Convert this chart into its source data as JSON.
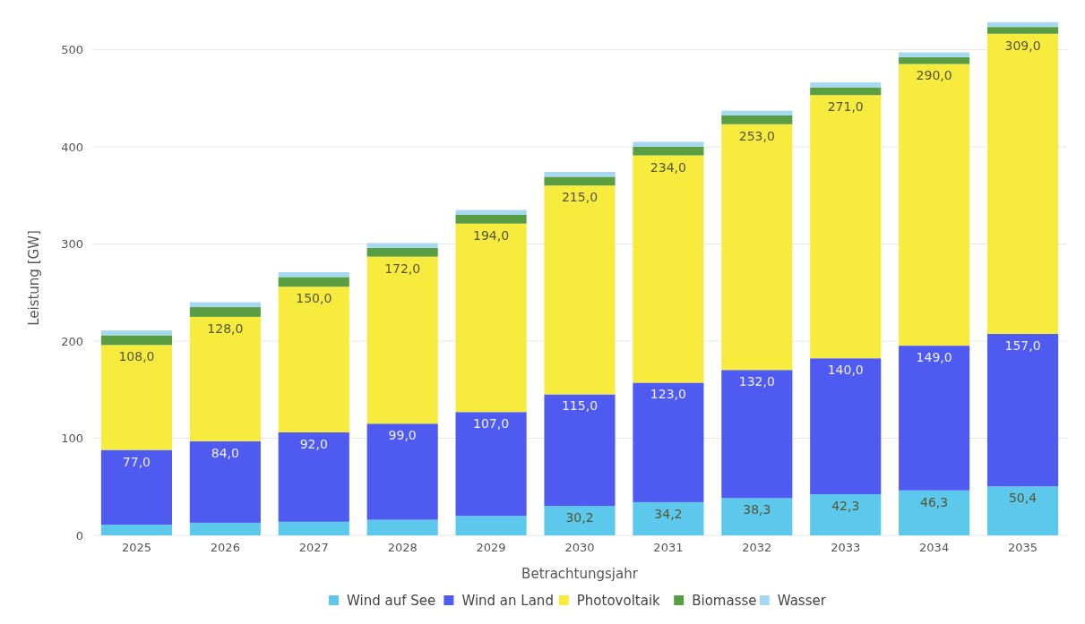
{
  "chart_data": {
    "type": "bar",
    "stacked": true,
    "xlabel": "Betrachtungsjahr",
    "ylabel": "Leistung [GW]",
    "categories": [
      "2025",
      "2026",
      "2027",
      "2028",
      "2029",
      "2030",
      "2031",
      "2032",
      "2033",
      "2034",
      "2035"
    ],
    "ylim": [
      0,
      530
    ],
    "yticks": [
      0,
      100,
      200,
      300,
      400,
      500
    ],
    "grid": "y",
    "legend": "bottom",
    "series": [
      {
        "name": "Wind auf See",
        "color": "#5bc8ec",
        "values": [
          11,
          13,
          14,
          16,
          20,
          30.2,
          34.2,
          38.3,
          42.3,
          46.3,
          50.4
        ],
        "value_labels": [
          null,
          null,
          null,
          null,
          null,
          "30,2",
          "34,2",
          "38,3",
          "42,3",
          "46,3",
          "50,4"
        ]
      },
      {
        "name": "Wind an Land",
        "color": "#4f5bf0",
        "values": [
          77,
          84,
          92,
          99,
          107,
          115,
          123,
          132,
          140,
          149,
          157
        ],
        "value_labels": [
          "77,0",
          "84,0",
          "92,0",
          "99,0",
          "107,0",
          "115,0",
          "123,0",
          "132,0",
          "140,0",
          "149,0",
          "157,0"
        ]
      },
      {
        "name": "Photovoltaik",
        "color": "#f7ec3e",
        "values": [
          108,
          128,
          150,
          172,
          194,
          215,
          234,
          253,
          271,
          290,
          309
        ],
        "value_labels": [
          "108,0",
          "128,0",
          "150,0",
          "172,0",
          "194,0",
          "215,0",
          "234,0",
          "253,0",
          "271,0",
          "290,0",
          "309,0"
        ]
      },
      {
        "name": "Biomasse",
        "color": "#5a9e43",
        "values": [
          10,
          10,
          10,
          9,
          9,
          9,
          9,
          9,
          8,
          7,
          7
        ]
      },
      {
        "name": "Wasser",
        "color": "#a6d8f0",
        "values": [
          5,
          5,
          5,
          5,
          5,
          5,
          5,
          5,
          5,
          5,
          5
        ]
      }
    ]
  }
}
